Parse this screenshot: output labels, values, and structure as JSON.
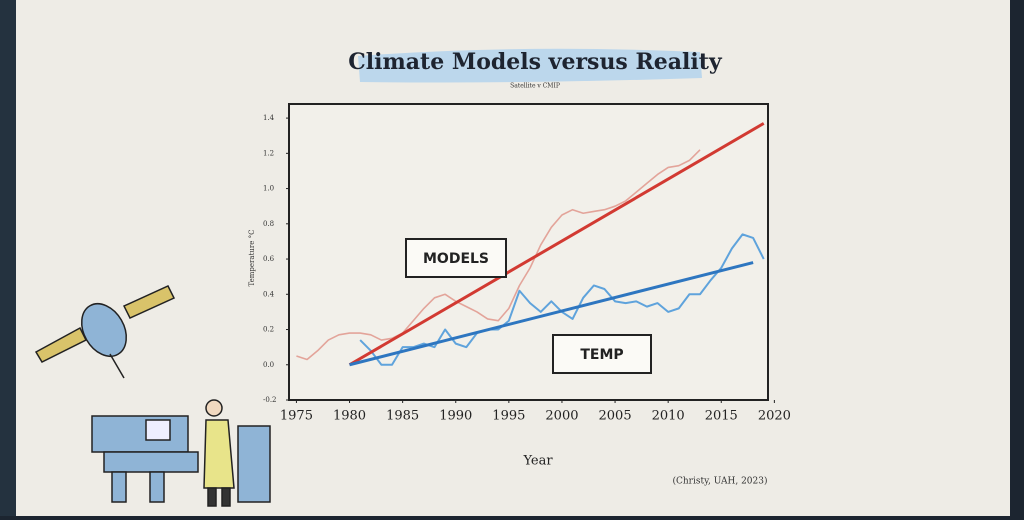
{
  "chart_data": {
    "type": "line",
    "title": "Climate Models versus Reality",
    "subtitle": "Satellite v CMIP",
    "x_label": "Year",
    "y_label": "Temperature °C",
    "source": "(Christy, UAH, 2023)",
    "annotations": [
      "MODELS",
      "TEMP"
    ],
    "xlim": [
      1974.3,
      2019.4
    ],
    "ylim": [
      -0.2,
      1.48
    ],
    "xticks": [
      1975,
      1980,
      1985,
      1990,
      1995,
      2000,
      2005,
      2010,
      2015,
      2020
    ],
    "yticks": [
      -0.2,
      {
        "value": 0,
        "label": "0.0"
      },
      0.2,
      0.4,
      0.6,
      0.8,
      {
        "value": 1,
        "label": "1.0"
      },
      1.2,
      1.4
    ],
    "series": [
      {
        "color": "#e3a49a",
        "width": 1.6,
        "x": [
          1975,
          1976,
          1977,
          1978,
          1979,
          1980,
          1981,
          1982,
          1983,
          1984,
          1985,
          1986,
          1987,
          1988,
          1989,
          1990,
          1991,
          1992,
          1993,
          1994,
          1995,
          1996,
          1997,
          1998,
          1999,
          2000,
          2001,
          2002,
          2003,
          2004,
          2005,
          2006,
          2007,
          2008,
          2009,
          2010,
          2011,
          2012,
          2013
        ],
        "values": [
          0.05,
          0.03,
          0.08,
          0.14,
          0.17,
          0.18,
          0.18,
          0.17,
          0.14,
          0.15,
          0.18,
          0.25,
          0.32,
          0.38,
          0.4,
          0.36,
          0.33,
          0.3,
          0.26,
          0.25,
          0.32,
          0.45,
          0.55,
          0.68,
          0.78,
          0.85,
          0.88,
          0.86,
          0.87,
          0.88,
          0.9,
          0.93,
          0.98,
          1.03,
          1.08,
          1.12,
          1.13,
          1.16,
          1.22
        ]
      },
      {
        "color": "#5fa3dc",
        "width": 2,
        "x": [
          1981,
          1982,
          1983,
          1984,
          1985,
          1986,
          1987,
          1988,
          1989,
          1990,
          1991,
          1992,
          1993,
          1994,
          1995,
          1996,
          1997,
          1998,
          1999,
          2000,
          2001,
          2002,
          2003,
          2004,
          2005,
          2006,
          2007,
          2008,
          2009,
          2010,
          2011,
          2012,
          2013,
          2014,
          2015,
          2016,
          2017,
          2018,
          2019
        ],
        "values": [
          0.14,
          0.08,
          0.0,
          0.0,
          0.1,
          0.1,
          0.12,
          0.1,
          0.2,
          0.12,
          0.1,
          0.18,
          0.2,
          0.2,
          0.25,
          0.42,
          0.35,
          0.3,
          0.36,
          0.3,
          0.26,
          0.38,
          0.45,
          0.43,
          0.36,
          0.35,
          0.36,
          0.33,
          0.35,
          0.3,
          0.32,
          0.4,
          0.4,
          0.48,
          0.55,
          0.66,
          0.74,
          0.72,
          0.6
        ]
      },
      {
        "color": "#d23a32",
        "width": 3,
        "x": [
          1980,
          2019
        ],
        "values": [
          0.0,
          1.37
        ]
      },
      {
        "color": "#2e76c0",
        "width": 3,
        "x": [
          1980,
          2018
        ],
        "values": [
          0.0,
          0.58
        ]
      }
    ]
  }
}
